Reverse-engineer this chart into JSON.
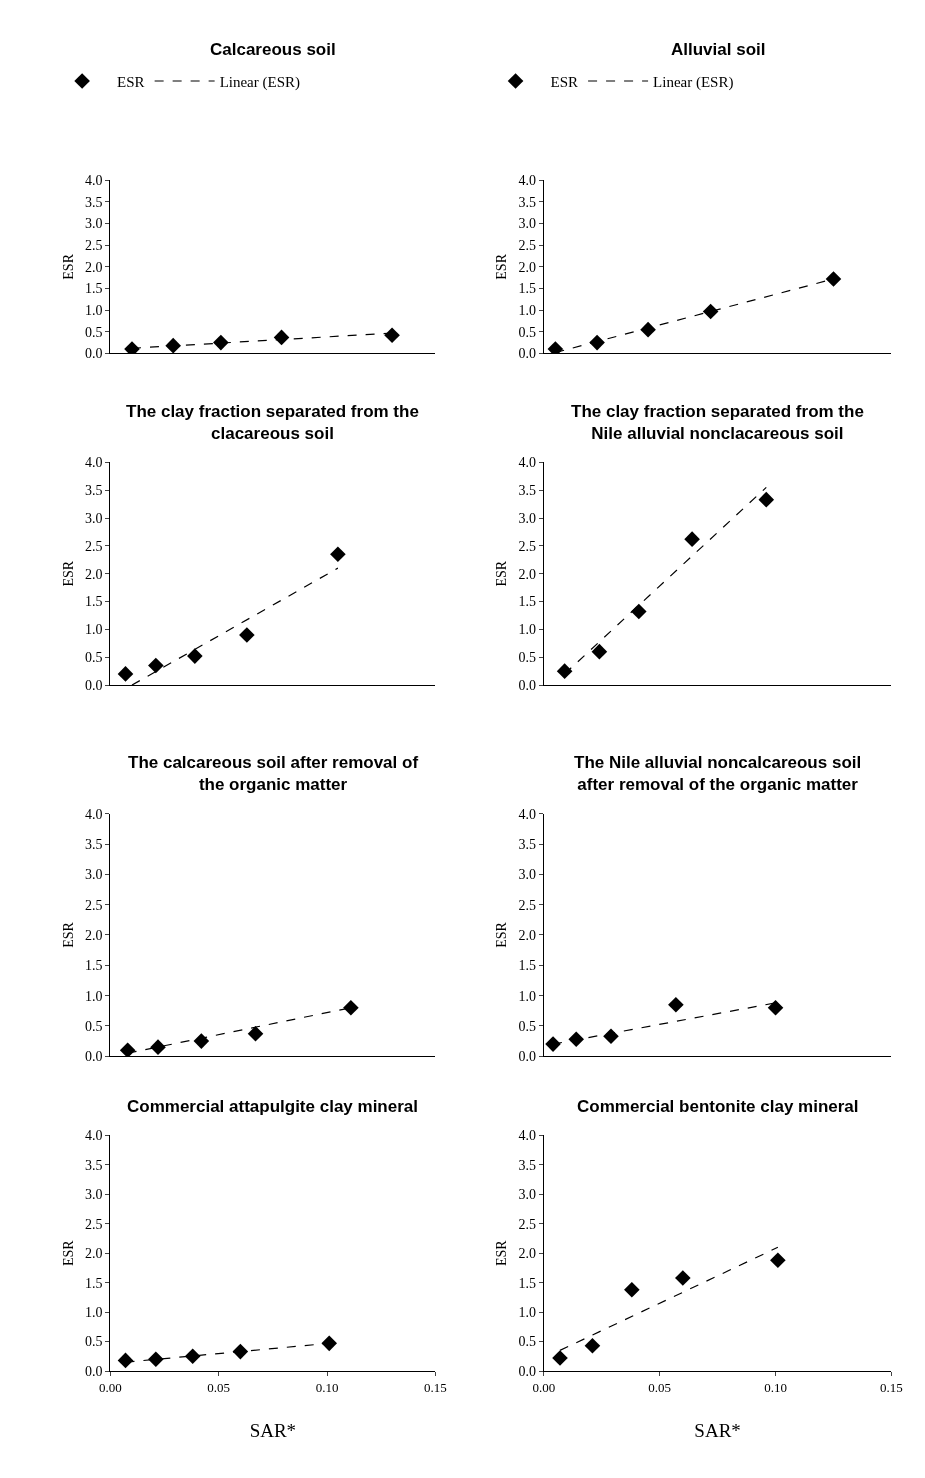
{
  "chart_data": [
    {
      "type": "scatter",
      "title": "Calcareous soil",
      "ylabel": "ESR",
      "xlim": [
        0,
        0.15
      ],
      "ylim": [
        0,
        4
      ],
      "yticks": [
        {
          "value": 0,
          "label": "0.0"
        },
        {
          "value": 0.5,
          "label": "0.5"
        },
        {
          "value": 1,
          "label": "1.0"
        },
        {
          "value": 1.5,
          "label": "1.5"
        },
        {
          "value": 2,
          "label": "2.0"
        },
        {
          "value": 2.5,
          "label": "2.5"
        },
        {
          "value": 3,
          "label": "3.0"
        },
        {
          "value": 3.5,
          "label": "3.5"
        },
        {
          "value": 4,
          "label": "4.0"
        }
      ],
      "tick_labels": "y",
      "grid": false,
      "legend": "top",
      "series": [
        {
          "name": "ESR",
          "marker": "diamond",
          "color": "#000000",
          "x": [
            0.01,
            0.029,
            0.051,
            0.079,
            0.13
          ],
          "values": [
            0.1,
            0.18,
            0.25,
            0.37,
            0.42
          ]
        },
        {
          "name": "Linear (ESR)",
          "type": "line",
          "marker": "none",
          "line_style": "dashed",
          "color": "#000000",
          "x": [
            0.01,
            0.13
          ],
          "values": [
            0.12,
            0.47
          ]
        }
      ]
    },
    {
      "type": "scatter",
      "title": "Alluvial soil",
      "ylabel": "ESR",
      "xlim": [
        0,
        0.15
      ],
      "ylim": [
        0,
        4
      ],
      "yticks": [
        {
          "value": 0,
          "label": "0.0"
        },
        {
          "value": 0.5,
          "label": "0.5"
        },
        {
          "value": 1,
          "label": "1.0"
        },
        {
          "value": 1.5,
          "label": "1.5"
        },
        {
          "value": 2,
          "label": "2.0"
        },
        {
          "value": 2.5,
          "label": "2.5"
        },
        {
          "value": 3,
          "label": "3.0"
        },
        {
          "value": 3.5,
          "label": "3.5"
        },
        {
          "value": 4,
          "label": "4.0"
        }
      ],
      "tick_labels": "y",
      "grid": false,
      "legend": "top",
      "series": [
        {
          "name": "ESR",
          "marker": "diamond",
          "color": "#000000",
          "x": [
            0.005,
            0.023,
            0.045,
            0.072,
            0.125
          ],
          "values": [
            0.1,
            0.25,
            0.55,
            0.97,
            1.72
          ]
        },
        {
          "name": "Linear (ESR)",
          "type": "line",
          "marker": "none",
          "line_style": "dashed",
          "color": "#000000",
          "x": [
            0.005,
            0.125
          ],
          "values": [
            0.02,
            1.72
          ]
        }
      ]
    },
    {
      "type": "scatter",
      "title": "The clay fraction separated from the clacareous soil",
      "ylabel": "ESR",
      "xlim": [
        0,
        0.15
      ],
      "ylim": [
        0,
        4
      ],
      "yticks": [
        {
          "value": 0,
          "label": "0.0"
        },
        {
          "value": 0.5,
          "label": "0.5"
        },
        {
          "value": 1,
          "label": "1.0"
        },
        {
          "value": 1.5,
          "label": "1.5"
        },
        {
          "value": 2,
          "label": "2.0"
        },
        {
          "value": 2.5,
          "label": "2.5"
        },
        {
          "value": 3,
          "label": "3.0"
        },
        {
          "value": 3.5,
          "label": "3.5"
        },
        {
          "value": 4,
          "label": "4.0"
        }
      ],
      "tick_labels": "y",
      "grid": false,
      "series": [
        {
          "marker": "diamond",
          "color": "#000000",
          "x": [
            0.007,
            0.021,
            0.039,
            0.063,
            0.105
          ],
          "values": [
            0.2,
            0.35,
            0.52,
            0.9,
            2.35
          ]
        },
        {
          "type": "line",
          "marker": "none",
          "line_style": "dashed",
          "color": "#000000",
          "x": [
            0.01,
            0.105
          ],
          "values": [
            0.0,
            2.1
          ]
        }
      ]
    },
    {
      "type": "scatter",
      "title": "The clay fraction separated from the Nile alluvial nonclacareous soil",
      "ylabel": "ESR",
      "xlim": [
        0,
        0.15
      ],
      "ylim": [
        0,
        4
      ],
      "yticks": [
        {
          "value": 0,
          "label": "0.0"
        },
        {
          "value": 0.5,
          "label": "0.5"
        },
        {
          "value": 1,
          "label": "1.0"
        },
        {
          "value": 1.5,
          "label": "1.5"
        },
        {
          "value": 2,
          "label": "2.0"
        },
        {
          "value": 2.5,
          "label": "2.5"
        },
        {
          "value": 3,
          "label": "3.0"
        },
        {
          "value": 3.5,
          "label": "3.5"
        },
        {
          "value": 4,
          "label": "4.0"
        }
      ],
      "tick_labels": "y",
      "grid": false,
      "series": [
        {
          "marker": "diamond",
          "color": "#000000",
          "x": [
            0.009,
            0.024,
            0.041,
            0.064,
            0.096
          ],
          "values": [
            0.25,
            0.6,
            1.32,
            2.62,
            3.33
          ]
        },
        {
          "type": "line",
          "marker": "none",
          "line_style": "dashed",
          "color": "#000000",
          "x": [
            0.009,
            0.096
          ],
          "values": [
            0.2,
            3.55
          ]
        }
      ]
    },
    {
      "type": "scatter",
      "title": "The calcareous soil after removal of the organic matter",
      "ylabel": "ESR",
      "xlim": [
        0,
        0.15
      ],
      "ylim": [
        0,
        4
      ],
      "yticks": [
        {
          "value": 0,
          "label": "0.0"
        },
        {
          "value": 0.5,
          "label": "0.5"
        },
        {
          "value": 1,
          "label": "1.0"
        },
        {
          "value": 1.5,
          "label": "1.5"
        },
        {
          "value": 2,
          "label": "2.0"
        },
        {
          "value": 2.5,
          "label": "2.5"
        },
        {
          "value": 3,
          "label": "3.0"
        },
        {
          "value": 3.5,
          "label": "3.5"
        },
        {
          "value": 4,
          "label": "4.0"
        }
      ],
      "tick_labels": "y",
      "grid": false,
      "series": [
        {
          "marker": "diamond",
          "color": "#000000",
          "x": [
            0.008,
            0.022,
            0.042,
            0.067,
            0.111
          ],
          "values": [
            0.1,
            0.15,
            0.25,
            0.37,
            0.8
          ]
        },
        {
          "type": "line",
          "marker": "none",
          "line_style": "dashed",
          "color": "#000000",
          "x": [
            0.008,
            0.111
          ],
          "values": [
            0.05,
            0.8
          ]
        }
      ]
    },
    {
      "type": "scatter",
      "title": "The Nile alluvial noncalcareous soil after removal of the organic matter",
      "ylabel": "ESR",
      "xlim": [
        0,
        0.15
      ],
      "ylim": [
        0,
        4
      ],
      "yticks": [
        {
          "value": 0,
          "label": "0.0"
        },
        {
          "value": 0.5,
          "label": "0.5"
        },
        {
          "value": 1,
          "label": "1.0"
        },
        {
          "value": 1.5,
          "label": "1.5"
        },
        {
          "value": 2,
          "label": "2.0"
        },
        {
          "value": 2.5,
          "label": "2.5"
        },
        {
          "value": 3,
          "label": "3.0"
        },
        {
          "value": 3.5,
          "label": "3.5"
        },
        {
          "value": 4,
          "label": "4.0"
        }
      ],
      "tick_labels": "y",
      "grid": false,
      "series": [
        {
          "marker": "diamond",
          "color": "#000000",
          "x": [
            0.004,
            0.014,
            0.029,
            0.057,
            0.1
          ],
          "values": [
            0.2,
            0.28,
            0.33,
            0.85,
            0.8
          ]
        },
        {
          "type": "line",
          "marker": "none",
          "line_style": "dashed",
          "color": "#000000",
          "x": [
            0.004,
            0.1
          ],
          "values": [
            0.2,
            0.88
          ]
        }
      ]
    },
    {
      "type": "scatter",
      "title": "Commercial attapulgite clay mineral",
      "xlabel": "SAR*",
      "ylabel": "ESR",
      "xlim": [
        0,
        0.15
      ],
      "xticks": [
        {
          "value": 0,
          "label": "0.00"
        },
        {
          "value": 0.05,
          "label": "0.05"
        },
        {
          "value": 0.1,
          "label": "0.10"
        },
        {
          "value": 0.15,
          "label": "0.15"
        }
      ],
      "ylim": [
        0,
        4
      ],
      "yticks": [
        {
          "value": 0,
          "label": "0.0"
        },
        {
          "value": 0.5,
          "label": "0.5"
        },
        {
          "value": 1,
          "label": "1.0"
        },
        {
          "value": 1.5,
          "label": "1.5"
        },
        {
          "value": 2,
          "label": "2.0"
        },
        {
          "value": 2.5,
          "label": "2.5"
        },
        {
          "value": 3,
          "label": "3.0"
        },
        {
          "value": 3.5,
          "label": "3.5"
        },
        {
          "value": 4,
          "label": "4.0"
        }
      ],
      "grid": false,
      "series": [
        {
          "marker": "diamond",
          "color": "#000000",
          "x": [
            0.007,
            0.021,
            0.038,
            0.06,
            0.101
          ],
          "values": [
            0.18,
            0.2,
            0.25,
            0.33,
            0.47
          ]
        },
        {
          "type": "line",
          "marker": "none",
          "line_style": "dashed",
          "color": "#000000",
          "x": [
            0.007,
            0.101
          ],
          "values": [
            0.15,
            0.47
          ]
        }
      ]
    },
    {
      "type": "scatter",
      "title": "Commercial bentonite clay mineral",
      "xlabel": "SAR*",
      "ylabel": "ESR",
      "xlim": [
        0,
        0.15
      ],
      "xticks": [
        {
          "value": 0,
          "label": "0.00"
        },
        {
          "value": 0.05,
          "label": "0.05"
        },
        {
          "value": 0.1,
          "label": "0.10"
        },
        {
          "value": 0.15,
          "label": "0.15"
        }
      ],
      "ylim": [
        0,
        4
      ],
      "yticks": [
        {
          "value": 0,
          "label": "0.0"
        },
        {
          "value": 0.5,
          "label": "0.5"
        },
        {
          "value": 1,
          "label": "1.0"
        },
        {
          "value": 1.5,
          "label": "1.5"
        },
        {
          "value": 2,
          "label": "2.0"
        },
        {
          "value": 2.5,
          "label": "2.5"
        },
        {
          "value": 3,
          "label": "3.0"
        },
        {
          "value": 3.5,
          "label": "3.5"
        },
        {
          "value": 4,
          "label": "4.0"
        }
      ],
      "grid": false,
      "series": [
        {
          "marker": "diamond",
          "color": "#000000",
          "x": [
            0.007,
            0.021,
            0.038,
            0.06,
            0.101
          ],
          "values": [
            0.22,
            0.43,
            1.38,
            1.58,
            1.88
          ]
        },
        {
          "type": "line",
          "marker": "none",
          "line_style": "dashed",
          "color": "#000000",
          "x": [
            0.007,
            0.101
          ],
          "values": [
            0.35,
            2.1
          ]
        }
      ]
    }
  ]
}
